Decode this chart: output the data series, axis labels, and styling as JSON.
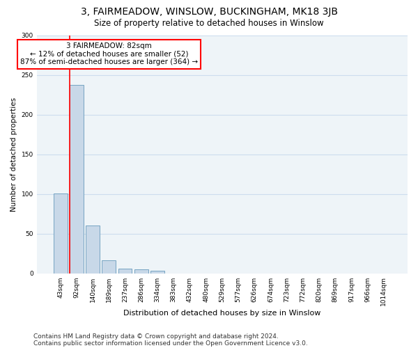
{
  "title": "3, FAIRMEADOW, WINSLOW, BUCKINGHAM, MK18 3JB",
  "subtitle": "Size of property relative to detached houses in Winslow",
  "xlabel": "Distribution of detached houses by size in Winslow",
  "ylabel": "Number of detached properties",
  "bar_labels": [
    "43sqm",
    "92sqm",
    "140sqm",
    "189sqm",
    "237sqm",
    "286sqm",
    "334sqm",
    "383sqm",
    "432sqm",
    "480sqm",
    "529sqm",
    "577sqm",
    "626sqm",
    "674sqm",
    "723sqm",
    "772sqm",
    "820sqm",
    "869sqm",
    "917sqm",
    "966sqm",
    "1014sqm"
  ],
  "bar_values": [
    101,
    238,
    60,
    16,
    6,
    5,
    3,
    0,
    0,
    0,
    0,
    0,
    0,
    0,
    0,
    0,
    0,
    0,
    0,
    0,
    0
  ],
  "bar_color": "#c8d8e8",
  "bar_edge_color": "#6699bb",
  "annotation_box_text": "3 FAIRMEADOW: 82sqm\n← 12% of detached houses are smaller (52)\n87% of semi-detached houses are larger (364) →",
  "annotation_box_color": "white",
  "annotation_box_edge_color": "red",
  "vline_color": "red",
  "ylim": [
    0,
    300
  ],
  "yticks": [
    0,
    50,
    100,
    150,
    200,
    250,
    300
  ],
  "grid_color": "#ccddee",
  "plot_bg_color": "#eef4f8",
  "footer_line1": "Contains HM Land Registry data © Crown copyright and database right 2024.",
  "footer_line2": "Contains public sector information licensed under the Open Government Licence v3.0.",
  "title_fontsize": 10,
  "subtitle_fontsize": 8.5,
  "annotation_fontsize": 7.5,
  "ylabel_fontsize": 7.5,
  "xlabel_fontsize": 8,
  "tick_fontsize": 6.5,
  "footer_fontsize": 6.5,
  "vline_x": 0.575,
  "bar_width": 0.85
}
